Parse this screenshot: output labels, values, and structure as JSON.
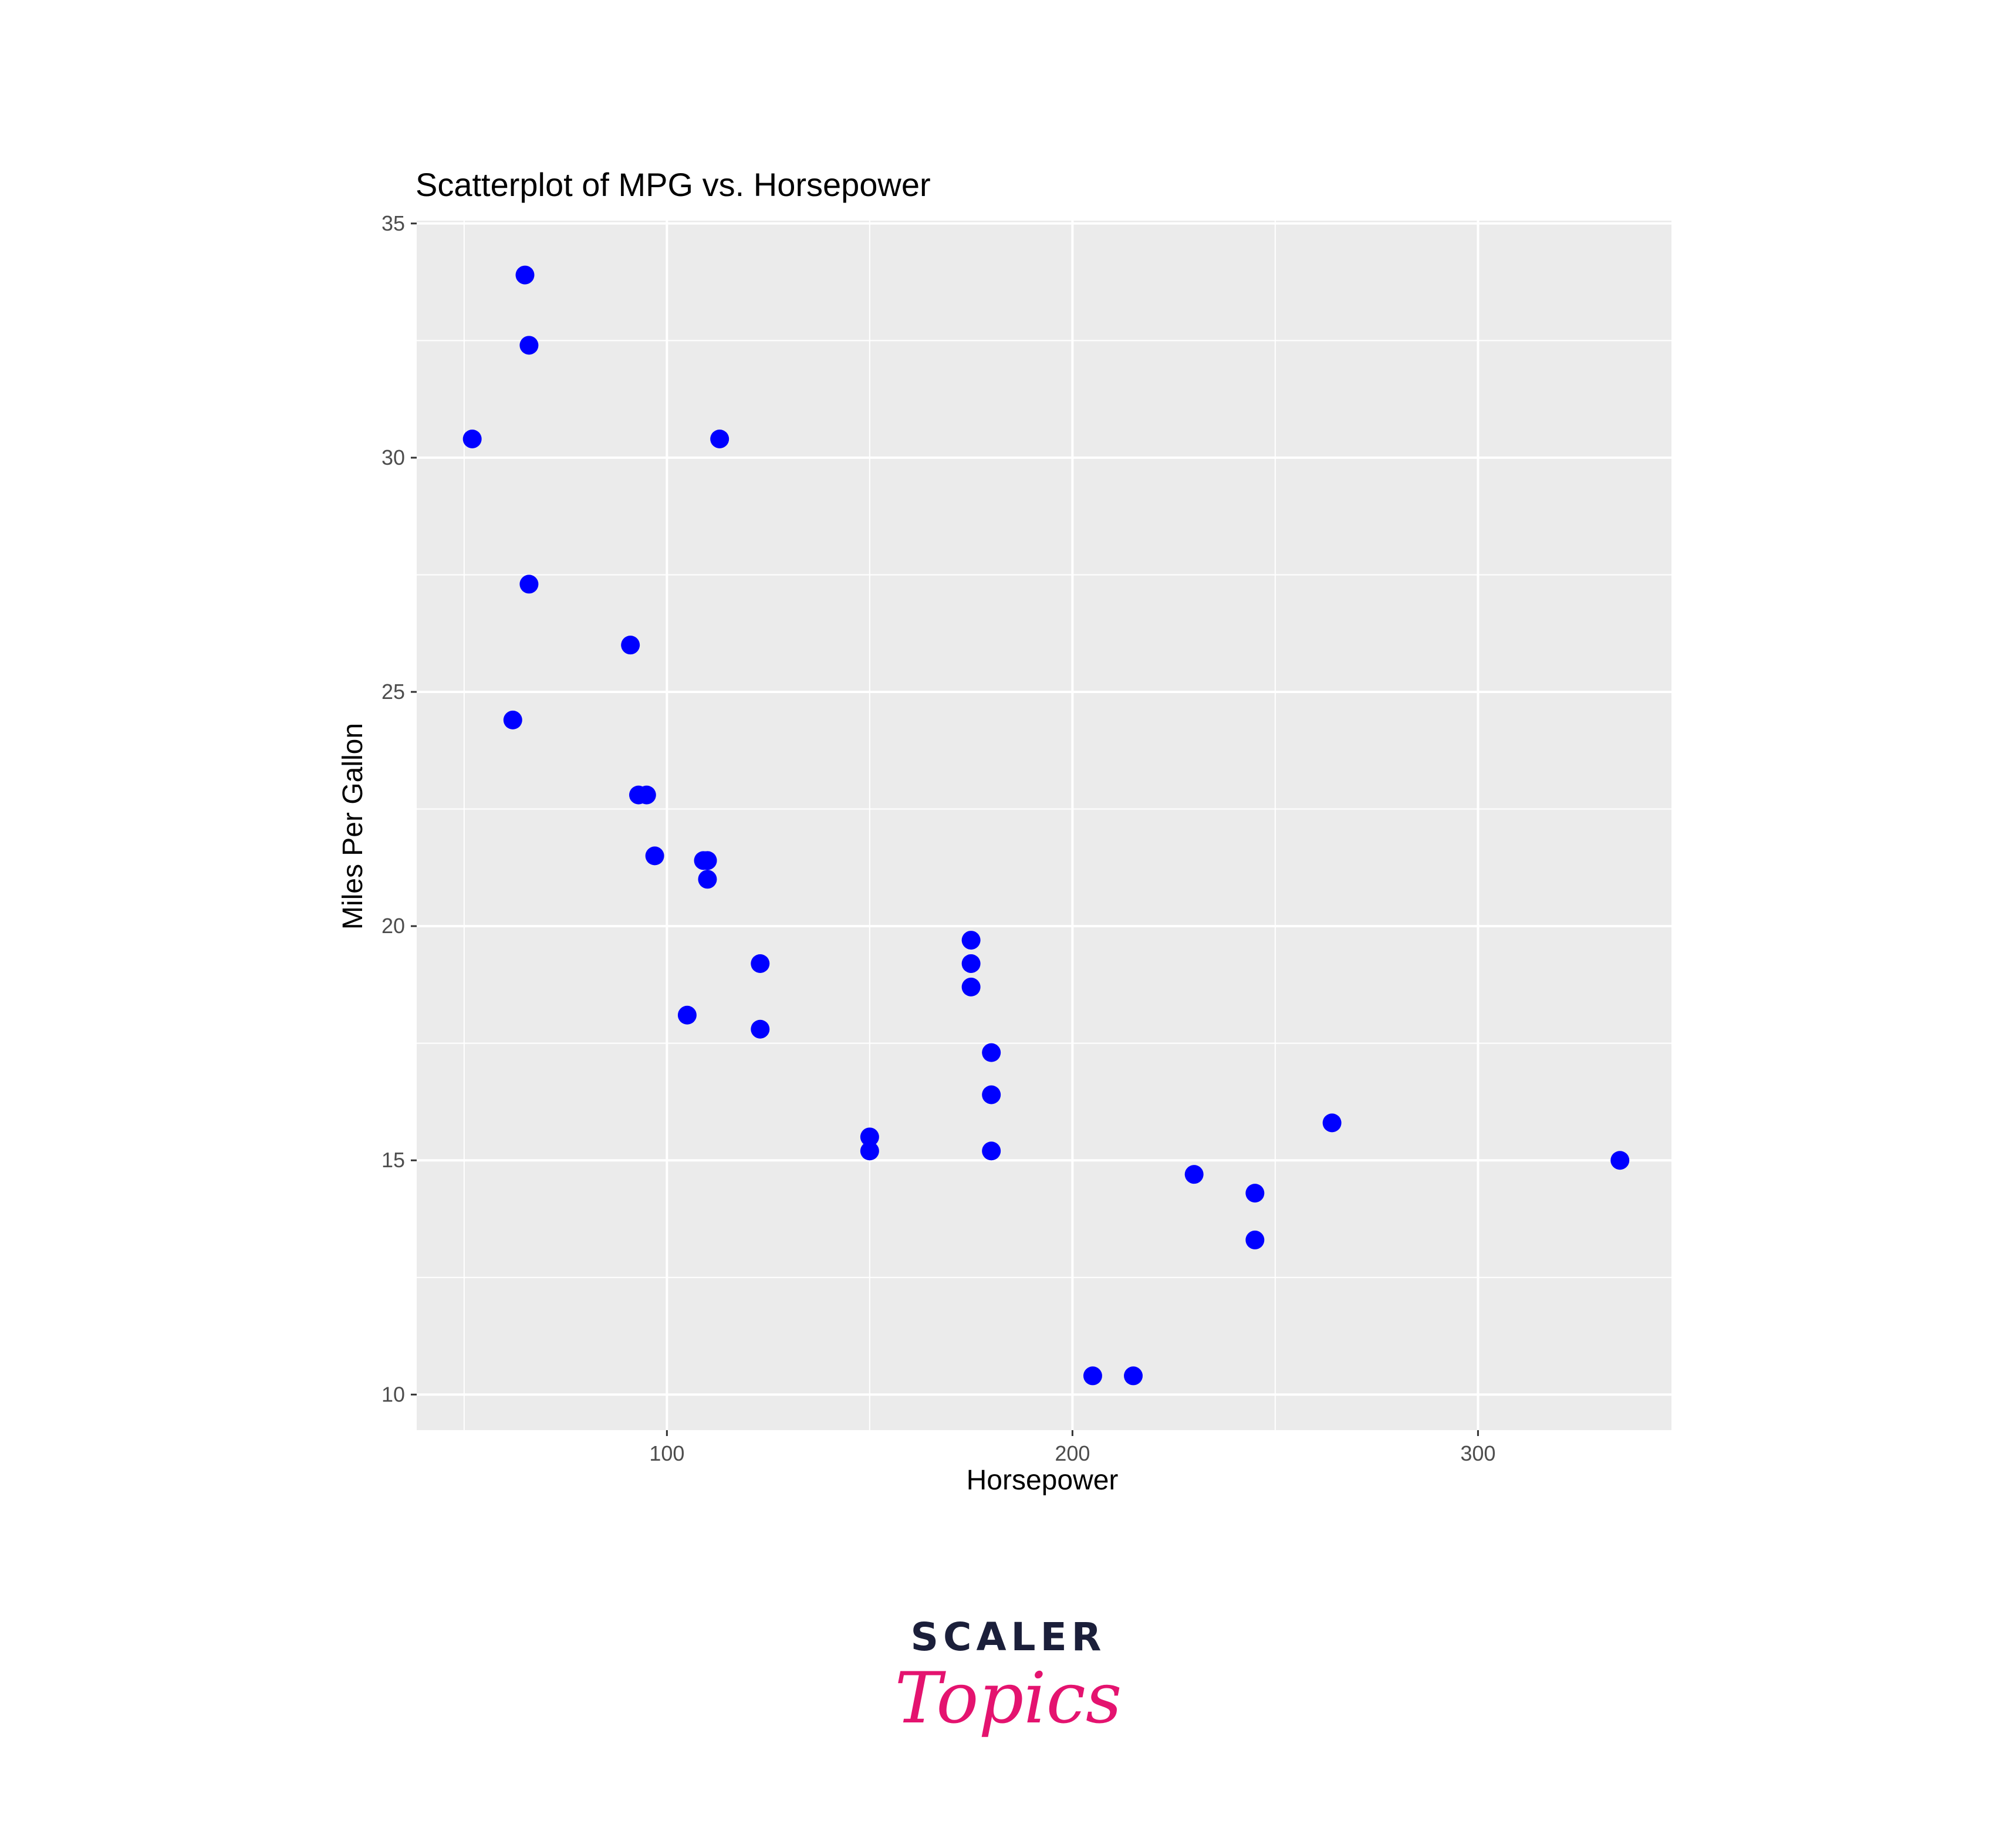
{
  "chart_data": {
    "type": "scatter",
    "title": "Scatterplot of MPG vs. Horsepower",
    "xlabel": "Horsepower",
    "ylabel": "Miles Per Gallon",
    "xlim": [
      38.3,
      347.7
    ],
    "ylim": [
      9.24,
      35.06
    ],
    "xticks": [
      100,
      200,
      300
    ],
    "yticks": [
      10,
      15,
      20,
      25,
      30,
      35
    ],
    "x_minor_gridlines": [
      50,
      150,
      250
    ],
    "y_minor_gridlines": [
      12.5,
      17.5,
      22.5,
      27.5,
      32.5
    ],
    "grid": true,
    "panel_color": "#ebebeb",
    "grid_color": "#ffffff",
    "point_color": "#0000ff",
    "points": [
      {
        "x": 110,
        "y": 21.0
      },
      {
        "x": 110,
        "y": 21.4
      },
      {
        "x": 93,
        "y": 22.8
      },
      {
        "x": 110,
        "y": 21.4
      },
      {
        "x": 175,
        "y": 18.7
      },
      {
        "x": 105,
        "y": 18.1
      },
      {
        "x": 245,
        "y": 14.3
      },
      {
        "x": 62,
        "y": 24.4
      },
      {
        "x": 95,
        "y": 22.8
      },
      {
        "x": 123,
        "y": 19.2
      },
      {
        "x": 123,
        "y": 17.8
      },
      {
        "x": 180,
        "y": 16.4
      },
      {
        "x": 180,
        "y": 17.3
      },
      {
        "x": 180,
        "y": 15.2
      },
      {
        "x": 205,
        "y": 10.4
      },
      {
        "x": 215,
        "y": 10.4
      },
      {
        "x": 230,
        "y": 14.7
      },
      {
        "x": 66,
        "y": 32.4
      },
      {
        "x": 52,
        "y": 30.4
      },
      {
        "x": 65,
        "y": 33.9
      },
      {
        "x": 97,
        "y": 21.5
      },
      {
        "x": 150,
        "y": 15.5
      },
      {
        "x": 150,
        "y": 15.2
      },
      {
        "x": 245,
        "y": 13.3
      },
      {
        "x": 175,
        "y": 19.2
      },
      {
        "x": 66,
        "y": 27.3
      },
      {
        "x": 91,
        "y": 26.0
      },
      {
        "x": 113,
        "y": 30.4
      },
      {
        "x": 264,
        "y": 15.8
      },
      {
        "x": 175,
        "y": 19.7
      },
      {
        "x": 335,
        "y": 15.0
      },
      {
        "x": 109,
        "y": 21.4
      }
    ]
  },
  "logo": {
    "brand": "SCALER",
    "product": "Topics"
  }
}
